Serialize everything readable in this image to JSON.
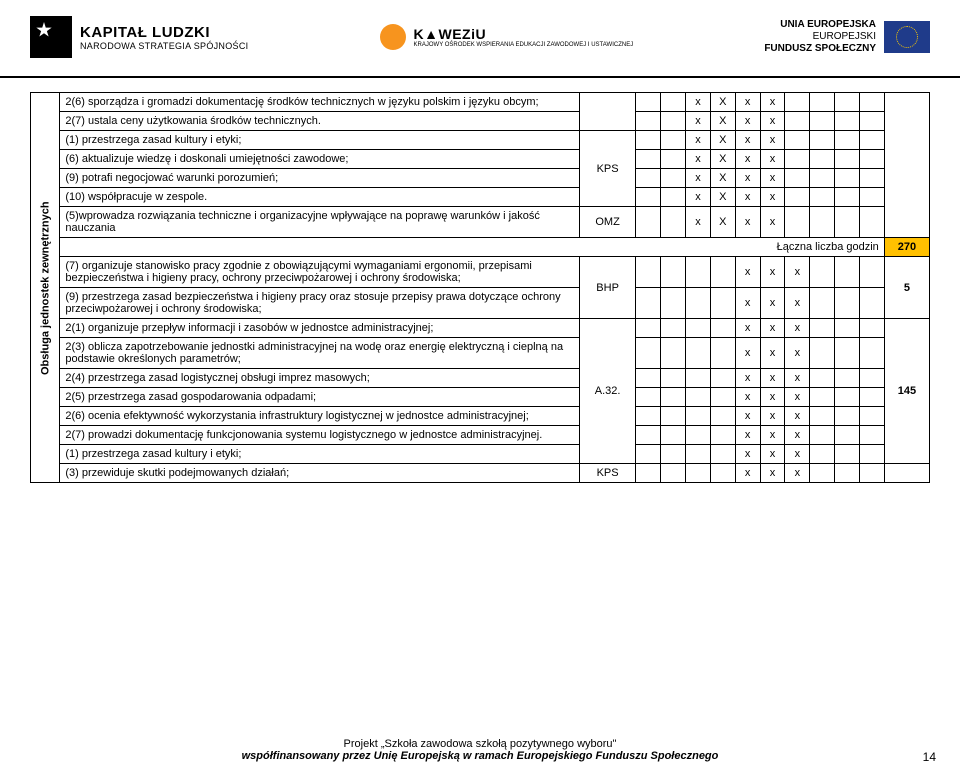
{
  "header": {
    "kl_title": "KAPITAŁ LUDZKI",
    "kl_sub": "NARODOWA STRATEGIA SPÓJNOŚCI",
    "kow_title": "K▲WEZiU",
    "kow_sub": "KRAJOWY OŚRODEK WSPIERANIA EDUKACJI ZAWODOWEJ I USTAWICZNEJ",
    "eu_l1": "UNIA EUROPEJSKA",
    "eu_l2": "EUROPEJSKI",
    "eu_l3": "FUNDUSZ SPOŁECZNY"
  },
  "vlabel": "Obsługa jednostek zewnętrznych",
  "codes": {
    "kps": "KPS",
    "omz": "OMZ",
    "bhp": "BHP",
    "a32": "A.32."
  },
  "rows": {
    "r1": "2(6) sporządza i gromadzi dokumentację środków technicznych w języku polskim i języku obcym;",
    "r2": "2(7) ustala ceny użytkowania środków technicznych.",
    "r3": "(1) przestrzega zasad kultury i etyki;",
    "r4": "(6) aktualizuje wiedzę i doskonali umiejętności zawodowe;",
    "r5": "(9) potrafi negocjować warunki porozumień;",
    "r6": "(10) współpracuje w zespole.",
    "r7": "(5)wprowadza rozwiązania techniczne i organizacyjne wpływające na poprawę warunków i jakość nauczania",
    "r8": "(7) organizuje stanowisko pracy zgodnie z obowiązującymi wymaganiami ergonomii, przepisami bezpieczeństwa i higieny pracy, ochrony przeciwpożarowej i ochrony środowiska;",
    "r9": "(9) przestrzega zasad bezpieczeństwa i higieny pracy oraz stosuje przepisy prawa dotyczące ochrony przeciwpożarowej i ochrony środowiska;",
    "r10": "2(1) organizuje przepływ informacji i zasobów w jednostce administracyjnej;",
    "r11": "2(3) oblicza zapotrzebowanie jednostki administracyjnej na wodę oraz energię elektryczną i cieplną na podstawie określonych parametrów;",
    "r12": "2(4) przestrzega zasad logistycznej obsługi imprez masowych;",
    "r13": "2(5) przestrzega zasad gospodarowania odpadami;",
    "r14": "2(6) ocenia efektywność wykorzystania infrastruktury logistycznej w jednostce administracyjnej;",
    "r15": "2(7) prowadzi dokumentację funkcjonowania systemu logistycznego w jednostce administracyjnej.",
    "r16": "(1) przestrzega zasad kultury i etyki;",
    "r17": "(3) przewiduje skutki podejmowanych działań;"
  },
  "marks": {
    "x": "x",
    "X": "X"
  },
  "totals": {
    "label": "Łączna liczba godzin",
    "value": "270"
  },
  "hours": {
    "h5": "5",
    "h145": "145"
  },
  "footer": {
    "l1": "Projekt „Szkoła zawodowa szkołą pozytywnego wyboru\"",
    "l2": "współfinansowany przez Unię Europejską w ramach Europejskiego Funduszu Społecznego"
  },
  "page": "14"
}
